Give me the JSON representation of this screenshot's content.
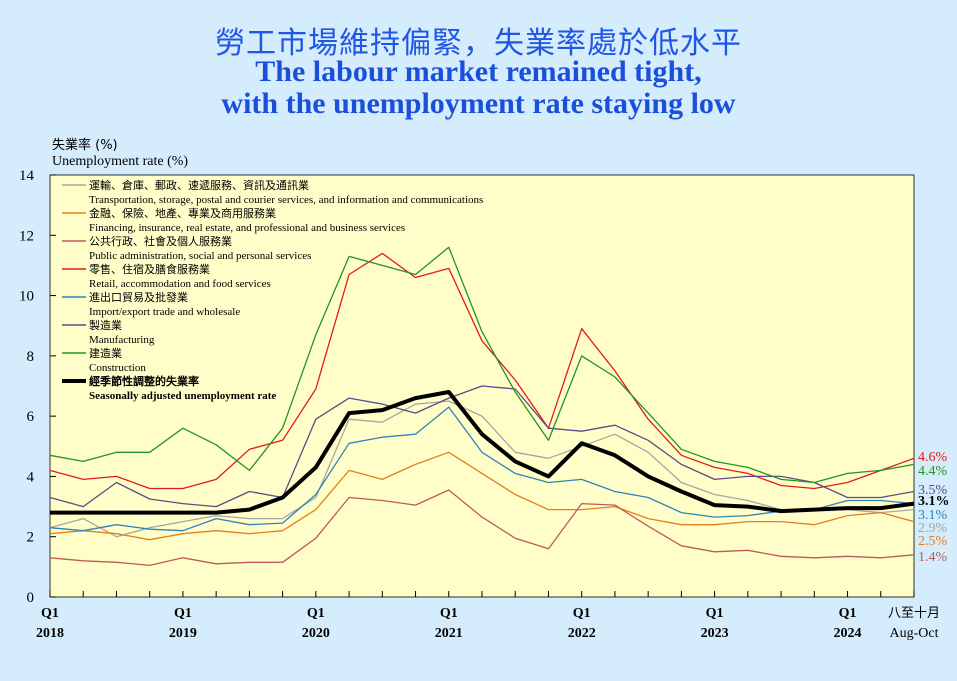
{
  "title": {
    "zh": "勞工市場維持偏緊，失業率處於低水平",
    "en_line1": "The labour market remained tight,",
    "en_line2": "with the unemployment rate staying low"
  },
  "colors": {
    "background": "#d4ecfb",
    "plot_background": "#fffec8",
    "title": "#1f56e6"
  },
  "chart_data": {
    "type": "line",
    "title": "The labour market remained tight, with the unemployment rate staying low",
    "ylabel_zh": "失業率 (%)",
    "ylabel_en": "Unemployment rate (%)",
    "ylim": [
      0,
      14
    ],
    "yticks": [
      0,
      2,
      4,
      6,
      8,
      10,
      12,
      14
    ],
    "x_count": 27,
    "x_ticks": [
      {
        "index": 0,
        "q": "Q1",
        "year": "2018"
      },
      {
        "index": 4,
        "q": "Q1",
        "year": "2019"
      },
      {
        "index": 8,
        "q": "Q1",
        "year": "2020"
      },
      {
        "index": 12,
        "q": "Q1",
        "year": "2021"
      },
      {
        "index": 16,
        "q": "Q1",
        "year": "2022"
      },
      {
        "index": 20,
        "q": "Q1",
        "year": "2023"
      },
      {
        "index": 24,
        "q": "Q1",
        "year": "2024"
      },
      {
        "index": 26,
        "q": "八至十月",
        "year": "Aug-Oct"
      }
    ],
    "series": [
      {
        "name_zh": "運輸、倉庫、郵政、速遞服務、資訊及通訊業",
        "name_en": "Transportation, storage, postal and courier services, and information and communications",
        "color": "#a6a6a6",
        "width": 1.3,
        "values": [
          2.3,
          2.6,
          2.0,
          2.3,
          2.5,
          2.7,
          2.6,
          2.6,
          3.3,
          5.9,
          5.8,
          6.4,
          6.5,
          6.0,
          4.8,
          4.6,
          5.0,
          5.4,
          4.8,
          3.8,
          3.4,
          3.2,
          2.9,
          2.9,
          2.9,
          2.8,
          2.9
        ],
        "end_label": "2.9%"
      },
      {
        "name_zh": "金融、保險、地產、專業及商用服務業",
        "name_en": "Financing, insurance, real estate, and professional and business services",
        "color": "#e67e1e",
        "width": 1.3,
        "values": [
          2.1,
          2.2,
          2.1,
          1.9,
          2.1,
          2.2,
          2.1,
          2.2,
          2.9,
          4.2,
          3.9,
          4.4,
          4.8,
          4.1,
          3.4,
          2.9,
          2.9,
          3.0,
          2.6,
          2.4,
          2.4,
          2.5,
          2.5,
          2.4,
          2.7,
          2.8,
          2.5
        ],
        "end_label": "2.5%"
      },
      {
        "name_zh": "公共行政、社會及個人服務業",
        "name_en": "Public administration, social and personal services",
        "color": "#bf5a5a",
        "width": 1.3,
        "values": [
          1.3,
          1.2,
          1.15,
          1.05,
          1.3,
          1.1,
          1.15,
          1.15,
          1.95,
          3.3,
          3.2,
          3.05,
          3.55,
          2.65,
          1.95,
          1.6,
          3.1,
          3.05,
          2.35,
          1.7,
          1.5,
          1.55,
          1.35,
          1.3,
          1.35,
          1.3,
          1.4
        ],
        "end_label": "1.4%"
      },
      {
        "name_zh": "零售、住宿及膳食服務業",
        "name_en": "Retail, accommodation and food services",
        "color": "#e41a1a",
        "width": 1.3,
        "values": [
          4.2,
          3.9,
          4.0,
          3.6,
          3.6,
          3.9,
          4.9,
          5.2,
          6.9,
          10.7,
          11.4,
          10.6,
          10.9,
          8.5,
          7.2,
          5.6,
          8.9,
          7.5,
          5.9,
          4.7,
          4.3,
          4.1,
          3.7,
          3.6,
          3.8,
          4.2,
          4.6
        ],
        "end_label": "4.6%"
      },
      {
        "name_zh": "進出口貿易及批發業",
        "name_en": "Import/export trade and wholesale",
        "color": "#2f83b9",
        "width": 1.3,
        "values": [
          2.3,
          2.2,
          2.4,
          2.25,
          2.2,
          2.6,
          2.4,
          2.45,
          3.4,
          5.1,
          5.3,
          5.4,
          6.3,
          4.8,
          4.1,
          3.8,
          3.9,
          3.5,
          3.3,
          2.8,
          2.65,
          2.7,
          2.85,
          2.9,
          3.2,
          3.2,
          3.1
        ],
        "end_label": "3.1%"
      },
      {
        "name_zh": "製造業",
        "name_en": "Manufacturing",
        "color": "#5b4b8a",
        "width": 1.3,
        "values": [
          3.3,
          3.0,
          3.8,
          3.25,
          3.1,
          3.0,
          3.5,
          3.3,
          5.9,
          6.6,
          6.4,
          6.1,
          6.6,
          7.0,
          6.9,
          5.6,
          5.5,
          5.7,
          5.2,
          4.4,
          3.9,
          4.0,
          4.0,
          3.8,
          3.3,
          3.3,
          3.5
        ],
        "end_label": "3.5%"
      },
      {
        "name_zh": "建造業",
        "name_en": "Construction",
        "color": "#22961e",
        "width": 1.3,
        "values": [
          4.7,
          4.5,
          4.8,
          4.8,
          5.6,
          5.05,
          4.2,
          5.6,
          8.7,
          11.3,
          11.0,
          10.7,
          11.6,
          8.8,
          6.8,
          5.2,
          8.0,
          7.3,
          6.1,
          4.9,
          4.5,
          4.3,
          3.9,
          3.8,
          4.1,
          4.2,
          4.4
        ],
        "end_label": "4.4%"
      },
      {
        "name_zh": "經季節性調整的失業率",
        "name_en": "Seasonally adjusted unemployment rate",
        "color": "#000000",
        "width": 4,
        "bold": true,
        "values": [
          2.8,
          2.8,
          2.8,
          2.8,
          2.8,
          2.8,
          2.9,
          3.3,
          4.3,
          6.1,
          6.2,
          6.6,
          6.8,
          5.4,
          4.5,
          4.0,
          5.1,
          4.7,
          4.0,
          3.5,
          3.05,
          3.0,
          2.85,
          2.9,
          2.95,
          2.95,
          3.1
        ],
        "end_label": "3.1%"
      }
    ]
  }
}
